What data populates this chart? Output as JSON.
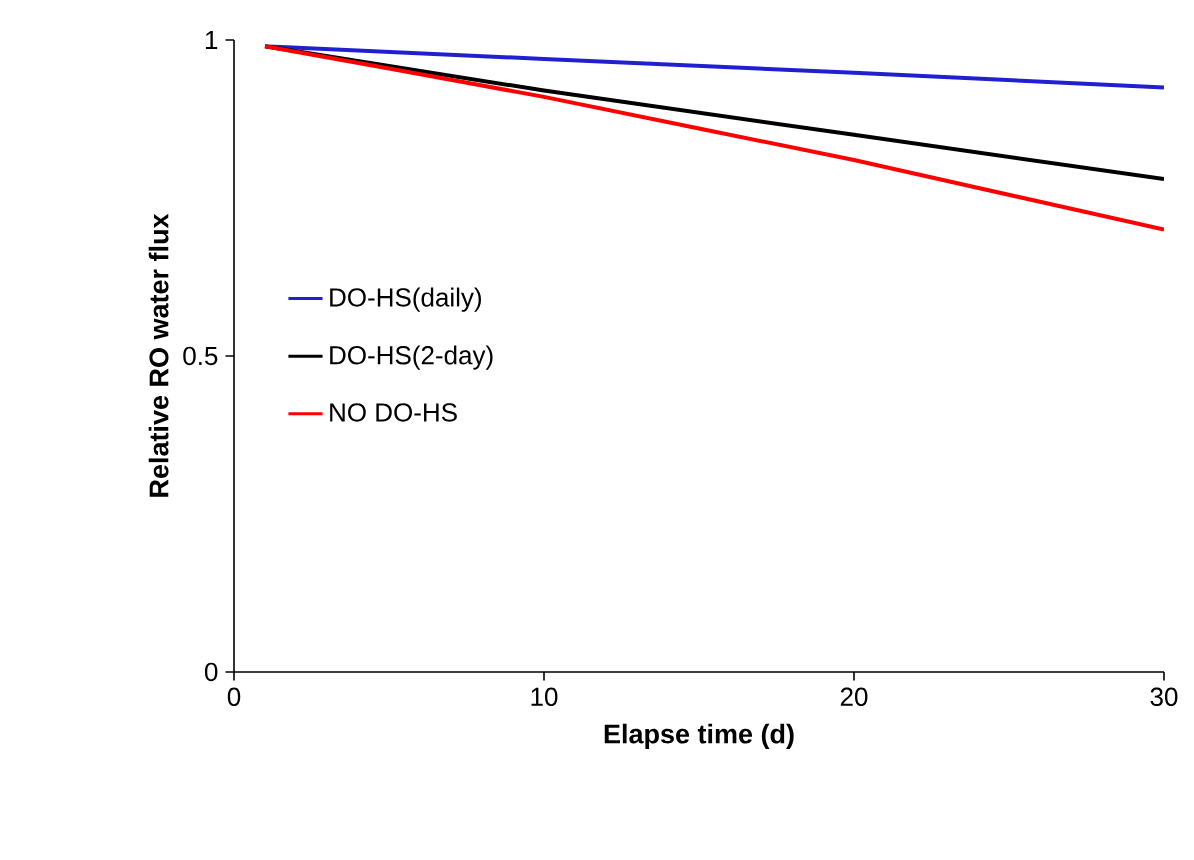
{
  "chart_data": {
    "type": "line",
    "xlabel": "Elapse time (d)",
    "ylabel": "Relative RO water flux",
    "xlim": [
      0,
      30
    ],
    "ylim": [
      0,
      1
    ],
    "xticks": [
      0,
      10,
      20,
      30
    ],
    "yticks": [
      0,
      0.5,
      1
    ],
    "legend": "left",
    "marker": "none",
    "line_style": "solid",
    "grid": false,
    "series": [
      {
        "name": "DO-HS(daily)",
        "color": "#2020d0",
        "x": [
          1,
          10,
          20,
          30
        ],
        "values": [
          0.99,
          0.97,
          0.948,
          0.925
        ]
      },
      {
        "name": "DO-HS(2-day)",
        "color": "#000000",
        "x": [
          1,
          10,
          20,
          30
        ],
        "values": [
          0.99,
          0.92,
          0.85,
          0.78
        ]
      },
      {
        "name": "NO DO-HS",
        "color": "#ff0000",
        "x": [
          1,
          5,
          10,
          15,
          20,
          25,
          30
        ],
        "values": [
          0.99,
          0.955,
          0.91,
          0.86,
          0.81,
          0.755,
          0.7
        ]
      }
    ]
  }
}
